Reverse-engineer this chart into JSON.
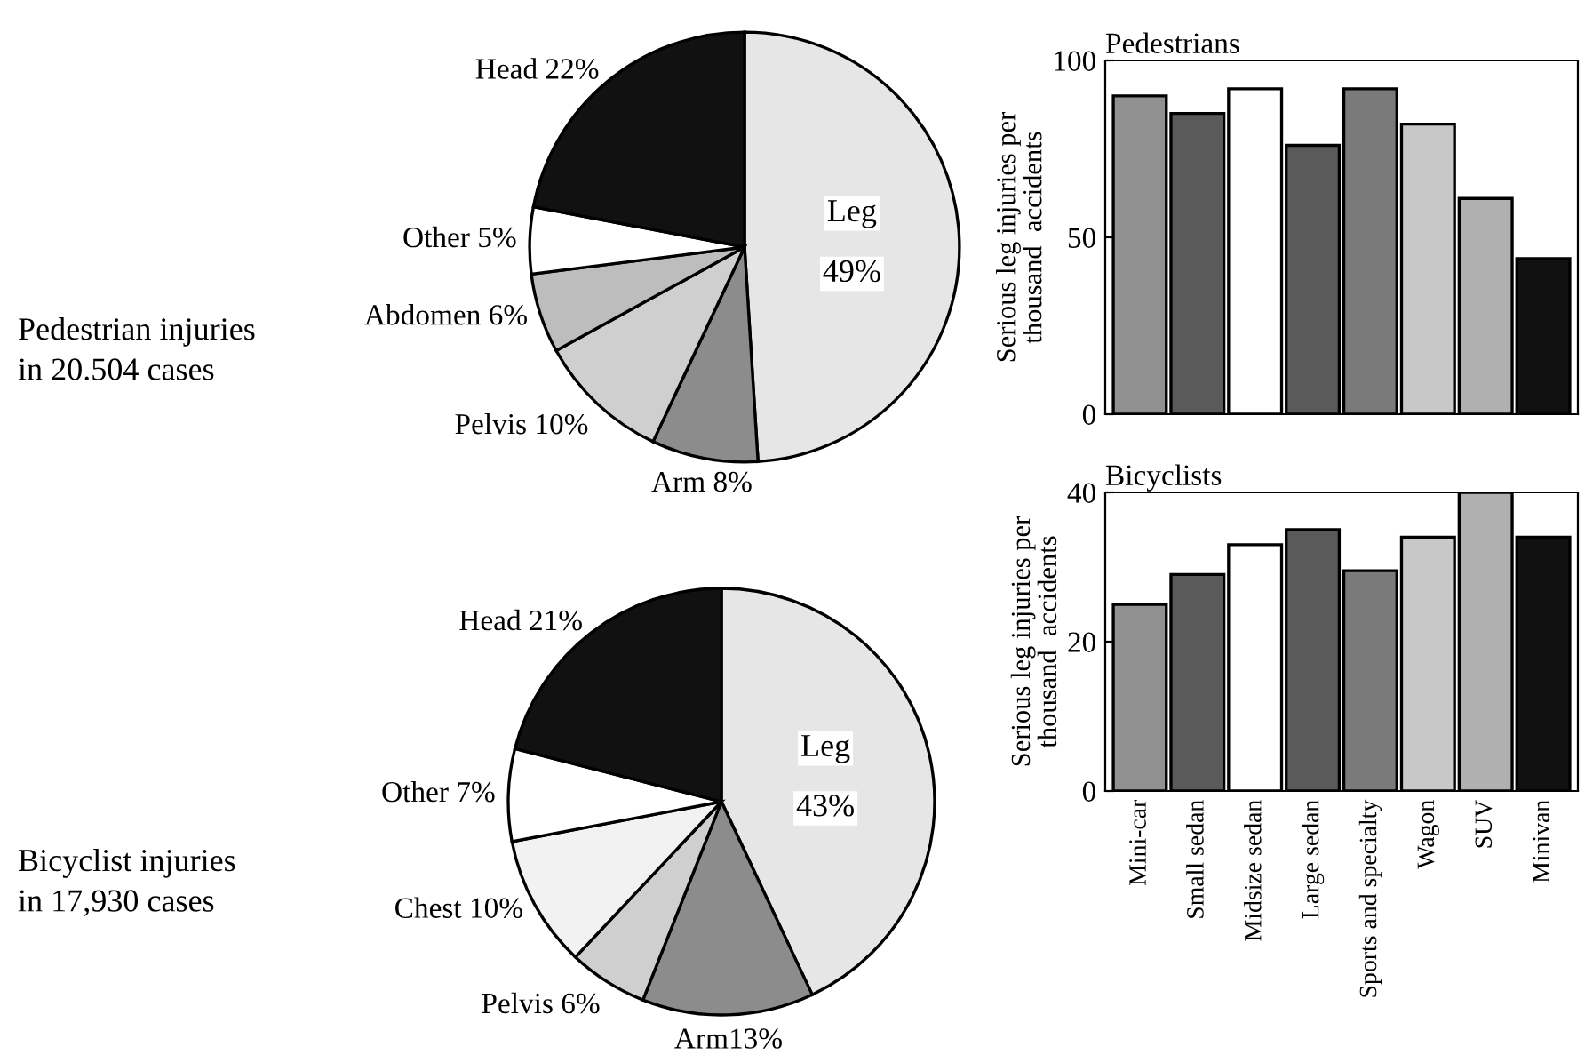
{
  "chart_data": [
    {
      "type": "pie",
      "title": "Pedestrian injuries\nin 20.504 cases",
      "categories": [
        "Leg",
        "Arm",
        "Pelvis",
        "Abdomen",
        "Other",
        "Head"
      ],
      "values": [
        49,
        8,
        10,
        6,
        5,
        22
      ],
      "colors": [
        "#e6e6e6",
        "#8c8c8c",
        "#cfcfcf",
        "#bdbdbd",
        "#ffffff",
        "#111111"
      ],
      "value_labels": [
        "49%",
        " 8%",
        " 10%",
        " 6%",
        " 5%",
        " 22%"
      ]
    },
    {
      "type": "bar",
      "title": "Pedestrians",
      "ylabel": "Serious leg injuries per\nthousand  accidents",
      "categories": [
        null,
        null,
        null,
        null,
        null,
        null,
        null,
        null
      ],
      "values": [
        90,
        85,
        92,
        76,
        92,
        82,
        61,
        44
      ],
      "colors": [
        "#909090",
        "#5a5a5a",
        "#ffffff",
        "#5a5a5a",
        "#7a7a7a",
        "#c8c8c8",
        "#b0b0b0",
        "#111111"
      ],
      "ylim": [
        0,
        100
      ],
      "yticks": [
        0,
        50,
        100
      ]
    },
    {
      "type": "pie",
      "title": "Bicyclist injuries\nin 17,930 cases",
      "categories": [
        "Leg",
        "Arm",
        "Pelvis",
        "Chest",
        "Other",
        "Head"
      ],
      "values": [
        43,
        13,
        6,
        10,
        7,
        21
      ],
      "colors": [
        "#e6e6e6",
        "#8c8c8c",
        "#cfcfcf",
        "#f2f2f2",
        "#ffffff",
        "#111111"
      ],
      "value_labels": [
        "43%",
        "13%",
        " 6%",
        " 10%",
        " 7%",
        " 21%"
      ]
    },
    {
      "type": "bar",
      "title": "Bicyclists",
      "ylabel": "Serious leg injuries per\nthousand  accidents",
      "categories": [
        "Mini-car",
        "Small sedan",
        "Midsize sedan",
        "Large sedan",
        "Sports and specialty",
        "Wagon",
        "SUV",
        "Minivan"
      ],
      "values": [
        25,
        29,
        33,
        35,
        29.5,
        34,
        40,
        34
      ],
      "colors": [
        "#909090",
        "#5a5a5a",
        "#ffffff",
        "#5a5a5a",
        "#7a7a7a",
        "#c8c8c8",
        "#b0b0b0",
        "#111111"
      ],
      "ylim": [
        0,
        40
      ],
      "yticks": [
        0,
        20,
        40
      ]
    }
  ]
}
